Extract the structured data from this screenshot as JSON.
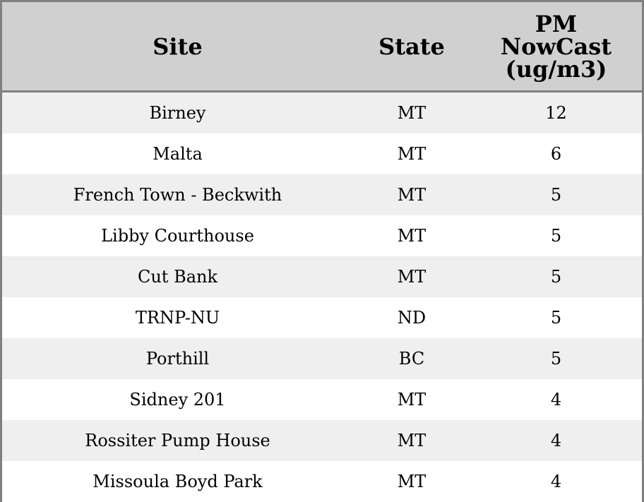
{
  "table": {
    "headers": [
      "Site",
      "State",
      "PM NowCast (ug/m3)"
    ],
    "header_lines": {
      "pm": [
        "PM",
        "NowCast",
        "(ug/m3)"
      ]
    },
    "rows": [
      {
        "site": "Birney",
        "state": "MT",
        "pm": "12"
      },
      {
        "site": "Malta",
        "state": "MT",
        "pm": "6"
      },
      {
        "site": "French Town - Beckwith",
        "state": "MT",
        "pm": "5"
      },
      {
        "site": "Libby Courthouse",
        "state": "MT",
        "pm": "5"
      },
      {
        "site": "Cut Bank",
        "state": "MT",
        "pm": "5"
      },
      {
        "site": "TRNP-NU",
        "state": "ND",
        "pm": "5"
      },
      {
        "site": "Porthill",
        "state": "BC",
        "pm": "5"
      },
      {
        "site": "Sidney 201",
        "state": "MT",
        "pm": "4"
      },
      {
        "site": "Rossiter Pump House",
        "state": "MT",
        "pm": "4"
      },
      {
        "site": "Missoula Boyd Park",
        "state": "MT",
        "pm": "4"
      }
    ]
  },
  "colors": {
    "header_bg": "#d0d0d0",
    "stripe": "#efefef",
    "border": "#808080"
  }
}
